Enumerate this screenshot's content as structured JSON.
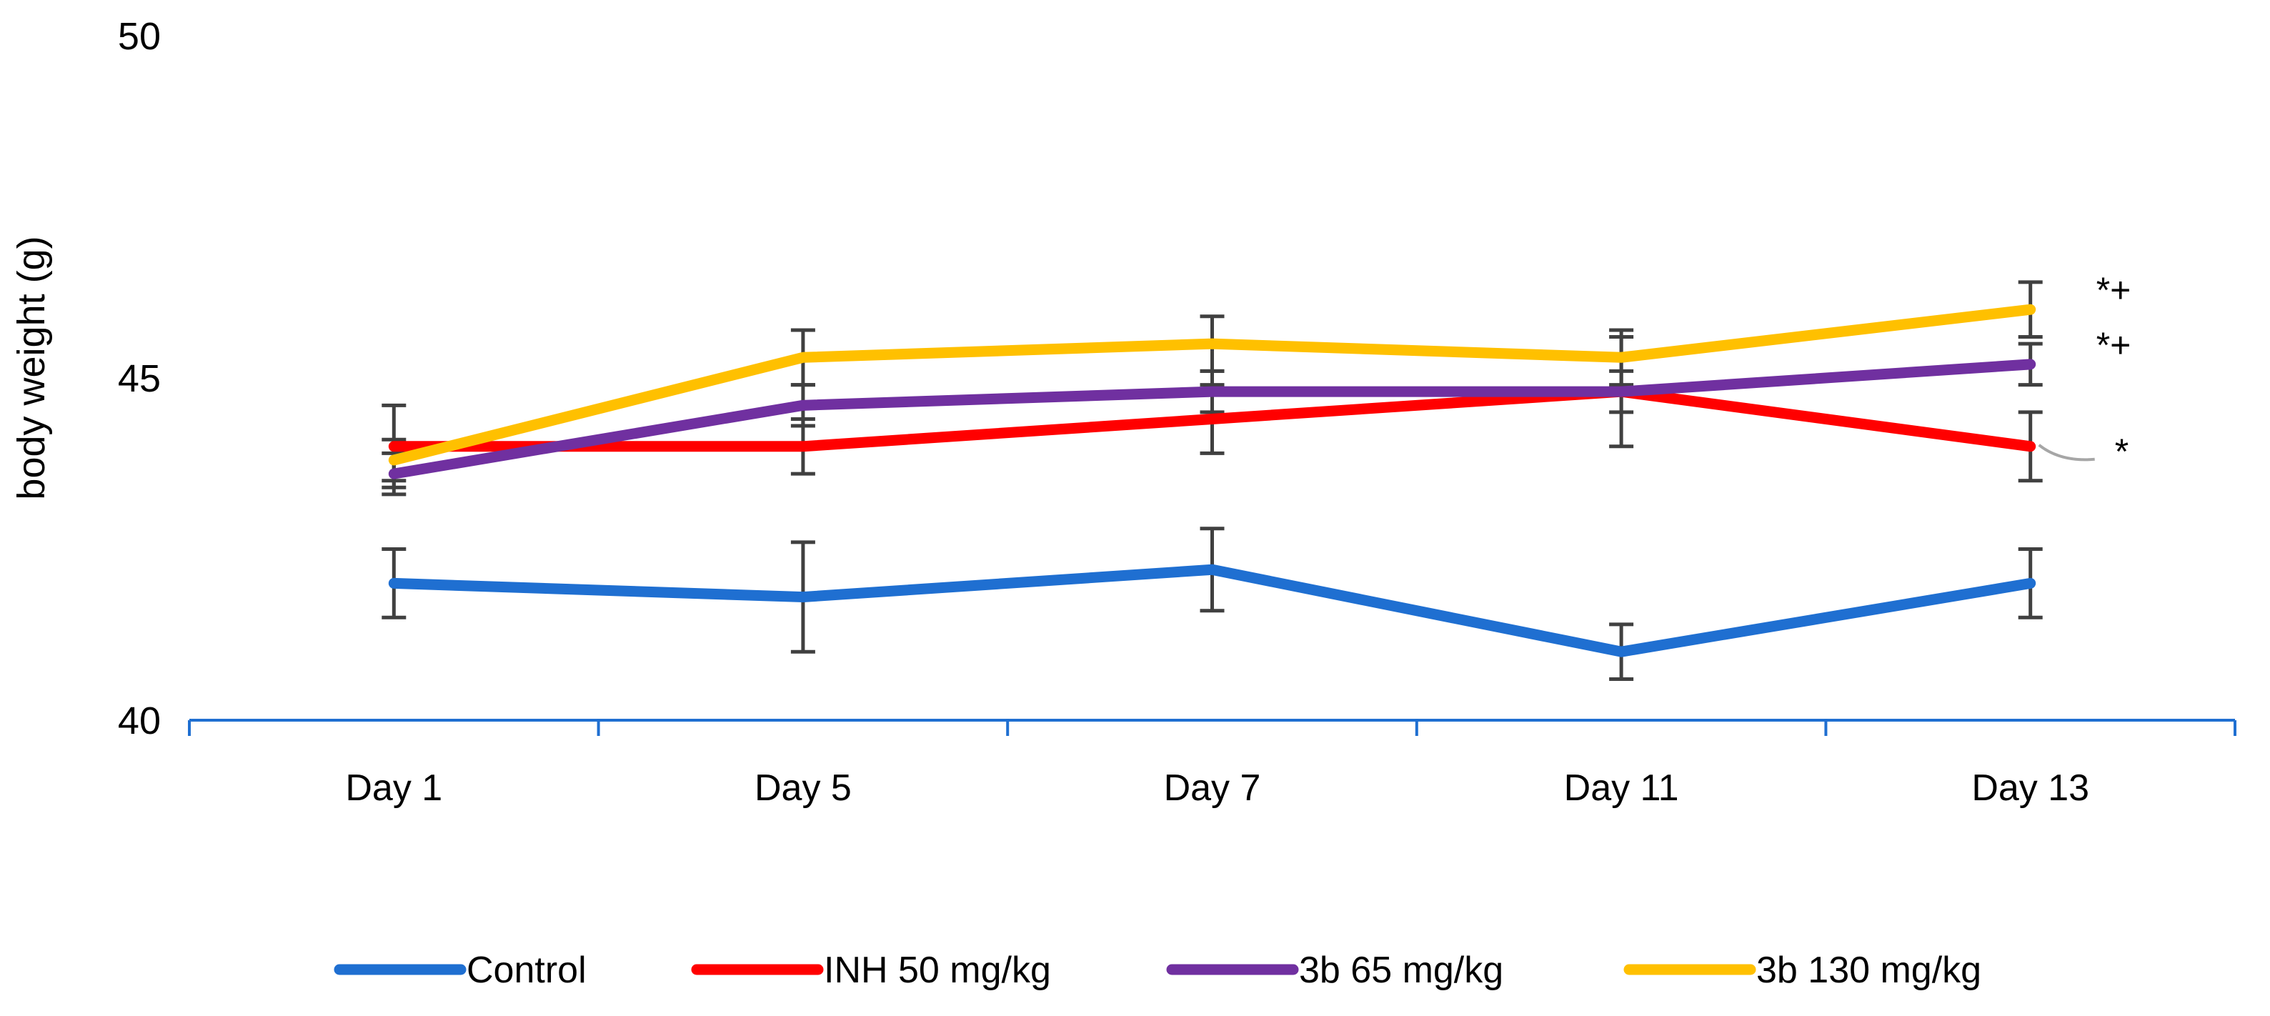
{
  "chart_data": {
    "type": "line",
    "title": "",
    "xlabel": "",
    "ylabel": "body weight (g)",
    "categories": [
      "Day 1",
      "Day 5",
      "Day 7",
      "Day 11",
      "Day 13"
    ],
    "ylim": [
      40,
      50
    ],
    "yticks": [
      "50",
      "45",
      "40"
    ],
    "grid": false,
    "legend_position": "bottom",
    "series": [
      {
        "name": "Control",
        "color": "#1f6fd1",
        "values": [
          42.0,
          41.8,
          42.2,
          41.0,
          42.0
        ],
        "errors": [
          0.5,
          0.8,
          0.6,
          0.4,
          0.5
        ]
      },
      {
        "name": "INH 50 mg/kg",
        "color": "#ff0000",
        "values": [
          44.0,
          44.0,
          44.4,
          44.8,
          44.0
        ],
        "errors": [
          0.6,
          0.4,
          0.5,
          0.8,
          0.5
        ]
      },
      {
        "name": "3b 65 mg/kg",
        "color": "#7030a0",
        "values": [
          43.6,
          44.6,
          44.8,
          44.8,
          45.2
        ],
        "errors": [
          0.3,
          0.3,
          0.3,
          0.3,
          0.3
        ]
      },
      {
        "name": "3b 130 mg/kg",
        "color": "#ffc000",
        "values": [
          43.8,
          45.3,
          45.5,
          45.3,
          46.0
        ],
        "errors": [
          0.3,
          0.4,
          0.4,
          0.4,
          0.4
        ]
      }
    ],
    "annotations": [
      {
        "text": "*+",
        "series": "3b 130 mg/kg",
        "category": "Day 13"
      },
      {
        "text": "*+",
        "series": "3b 65 mg/kg",
        "category": "Day 13"
      },
      {
        "text": "*",
        "series": "INH 50 mg/kg",
        "category": "Day 13"
      }
    ]
  }
}
